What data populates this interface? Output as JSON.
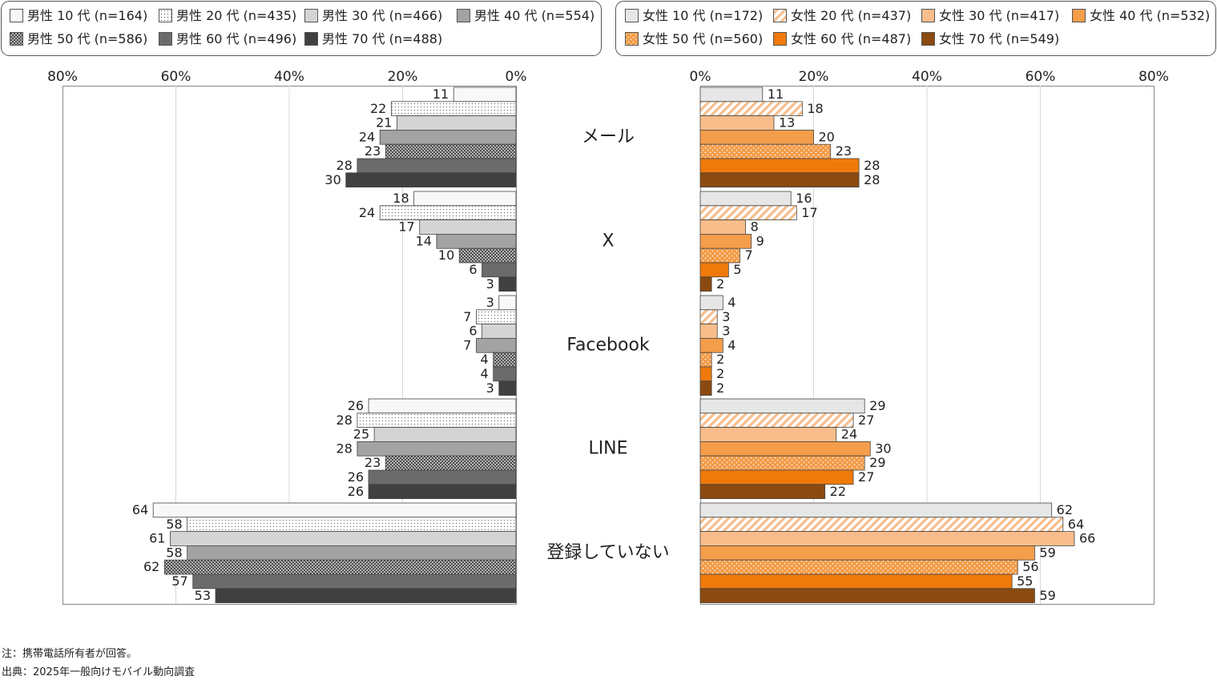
{
  "chart_data": {
    "type": "bar",
    "orientation": "horizontal",
    "categories": [
      "メール",
      "X",
      "Facebook",
      "LINE",
      "登録していない"
    ],
    "panels": [
      {
        "side": "left",
        "axis_ticks": [
          "80%",
          "60%",
          "40%",
          "20%",
          "0%"
        ],
        "xlim": [
          0,
          80
        ],
        "direction": "reversed",
        "series": [
          {
            "name": "男性 10 代 (n=164)",
            "color": "#f8f8f8",
            "pattern": "none",
            "values": [
              11,
              18,
              3,
              26,
              64
            ]
          },
          {
            "name": "男性 20 代 (n=435)",
            "color": "#ffffff",
            "pattern": "dots",
            "values": [
              22,
              24,
              7,
              28,
              58
            ]
          },
          {
            "name": "男性 30 代 (n=466)",
            "color": "#d4d4d4",
            "pattern": "none",
            "values": [
              21,
              17,
              6,
              25,
              61
            ]
          },
          {
            "name": "男性 40 代 (n=554)",
            "color": "#a3a3a3",
            "pattern": "none",
            "values": [
              24,
              14,
              7,
              28,
              58
            ]
          },
          {
            "name": "男性 50 代 (n=586)",
            "color": "#c8c8c8",
            "pattern": "crosshatch",
            "values": [
              23,
              10,
              4,
              23,
              62
            ]
          },
          {
            "name": "男性 60 代 (n=496)",
            "color": "#6b6b6b",
            "pattern": "none",
            "values": [
              28,
              6,
              4,
              26,
              57
            ]
          },
          {
            "name": "男性 70 代 (n=488)",
            "color": "#404040",
            "pattern": "none",
            "values": [
              30,
              3,
              3,
              26,
              53
            ]
          }
        ]
      },
      {
        "side": "right",
        "axis_ticks": [
          "0%",
          "20%",
          "40%",
          "60%",
          "80%"
        ],
        "xlim": [
          0,
          80
        ],
        "direction": "normal",
        "series": [
          {
            "name": "女性 10 代 (n=172)",
            "color": "#e6e6e6",
            "pattern": "none",
            "values": [
              11,
              16,
              4,
              29,
              62
            ]
          },
          {
            "name": "女性 20 代 (n=437)",
            "color": "#ffffff",
            "pattern": "stripes",
            "values": [
              18,
              17,
              3,
              27,
              64
            ]
          },
          {
            "name": "女性 30 代 (n=417)",
            "color": "#f8bd8a",
            "pattern": "none",
            "values": [
              13,
              8,
              3,
              24,
              66
            ]
          },
          {
            "name": "女性 40 代 (n=532)",
            "color": "#f49d4a",
            "pattern": "none",
            "values": [
              20,
              9,
              4,
              30,
              59
            ]
          },
          {
            "name": "女性 50 代 (n=560)",
            "color": "#f39a44",
            "pattern": "dots-light",
            "values": [
              23,
              7,
              2,
              29,
              56
            ]
          },
          {
            "name": "女性 60 代 (n=487)",
            "color": "#ef7a0a",
            "pattern": "none",
            "values": [
              28,
              5,
              2,
              27,
              55
            ]
          },
          {
            "name": "女性 70 代 (n=549)",
            "color": "#8b4a10",
            "pattern": "none",
            "values": [
              28,
              2,
              2,
              22,
              59
            ]
          }
        ]
      }
    ],
    "legend_placement": "top",
    "grid": true
  },
  "notes": [
    "注：携帯電話所有者が回答。",
    "出典：2025年一般向けモバイル動向調査"
  ]
}
